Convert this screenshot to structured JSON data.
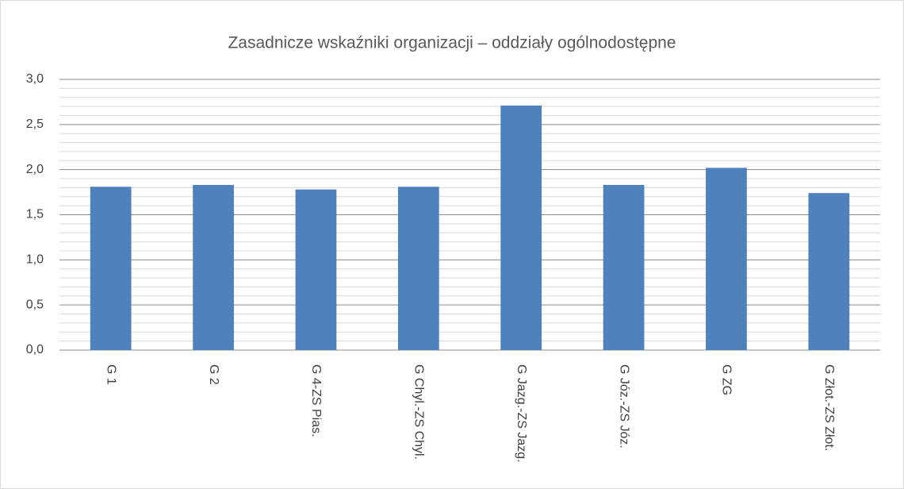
{
  "chart_data": {
    "type": "bar",
    "title": "Zasadnicze wskaźniki organizacji – oddziały ogólnodostępne",
    "categories": [
      "G 1",
      "G 2",
      "G 4-ZS Pias.",
      "G Chyl.-ZS Chyl.",
      "G Jazg.-ZS Jazg.",
      "G Józ.-ZS Józ.",
      "G ZG",
      "G Złot.-ZS Złot."
    ],
    "values": [
      1.81,
      1.83,
      1.78,
      1.81,
      2.71,
      1.83,
      2.02,
      1.74
    ],
    "color": "#4f81bd",
    "ylim": [
      0,
      3
    ],
    "yticks": [
      {
        "value": 0,
        "label": "0,0"
      },
      {
        "value": 0.5,
        "label": "0,5"
      },
      {
        "value": 1,
        "label": "1,0"
      },
      {
        "value": 1.5,
        "label": "1,5"
      },
      {
        "value": 2,
        "label": "2,0"
      },
      {
        "value": 2.5,
        "label": "2,5"
      },
      {
        "value": 3,
        "label": "3,0"
      }
    ],
    "yminorticks": [
      0.1,
      0.2,
      0.3,
      0.4,
      0.6,
      0.7,
      0.8,
      0.9,
      1.1,
      1.2,
      1.3,
      1.4,
      1.6,
      1.7,
      1.8,
      1.9,
      2.1,
      2.2,
      2.3,
      2.4,
      2.6,
      2.7,
      2.8,
      2.9
    ],
    "grid": true
  }
}
